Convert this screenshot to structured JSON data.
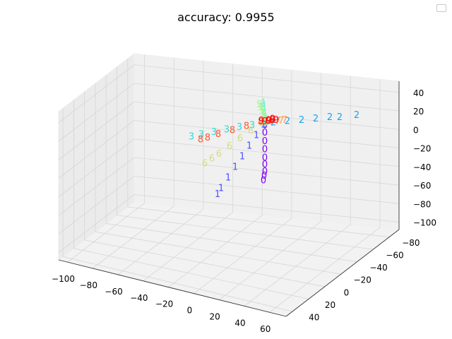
{
  "chart_data": {
    "type": "scatter",
    "projection": "3d",
    "title": "accuracy: 0.9955",
    "xlabel": "",
    "ylabel": "",
    "zlabel": "",
    "grid": true,
    "legend": "top-right",
    "x_ticks": [
      "−100",
      "−80",
      "−60",
      "−40",
      "−20",
      "0",
      "20",
      "40",
      "60"
    ],
    "y_ticks": [
      "−80",
      "−60",
      "−40",
      "−20",
      "0",
      "20",
      "40"
    ],
    "z_ticks": [
      "−100",
      "−80",
      "−60",
      "−40",
      "−20",
      "0",
      "20",
      "40"
    ],
    "xlim": [
      -100,
      70
    ],
    "ylim": [
      -90,
      50
    ],
    "zlim": [
      -115,
      50
    ],
    "series": [
      {
        "label": "0",
        "color": "#8000ff",
        "points": [
          [
            0,
            0,
            -5
          ],
          [
            2,
            -4,
            -18
          ],
          [
            4,
            -8,
            -32
          ],
          [
            6,
            -12,
            -46
          ],
          [
            8,
            -16,
            -60
          ],
          [
            10,
            -20,
            -72
          ],
          [
            12,
            -24,
            -84
          ],
          [
            13,
            -27,
            -92
          ],
          [
            14,
            -30,
            -100
          ]
        ]
      },
      {
        "label": "1",
        "color": "#4a52ff",
        "points": [
          [
            -1,
            0,
            -4
          ],
          [
            -5,
            -2,
            -18
          ],
          [
            -9,
            -4,
            -32
          ],
          [
            -13,
            -6,
            -46
          ],
          [
            -17,
            -8,
            -60
          ],
          [
            -21,
            -10,
            -74
          ],
          [
            -25,
            -12,
            -88
          ],
          [
            -27,
            -13,
            -96
          ]
        ]
      },
      {
        "label": "2",
        "color": "#16a4f0",
        "points": [
          [
            2,
            8,
            2
          ],
          [
            8,
            16,
            6
          ],
          [
            14,
            24,
            10
          ],
          [
            20,
            32,
            14
          ],
          [
            26,
            40,
            18
          ],
          [
            30,
            46,
            20
          ],
          [
            38,
            54,
            24
          ]
        ]
      },
      {
        "label": "3",
        "color": "#2adddd",
        "points": [
          [
            -2,
            4,
            0
          ],
          [
            -12,
            6,
            2
          ],
          [
            -22,
            8,
            4
          ],
          [
            -32,
            10,
            5
          ],
          [
            -42,
            12,
            6
          ],
          [
            -52,
            14,
            7
          ],
          [
            -60,
            16,
            8
          ]
        ]
      },
      {
        "label": "4",
        "color": "#72f6c4",
        "points": [
          [
            -1,
            3,
            2
          ],
          [
            -3,
            6,
            10
          ],
          [
            -5,
            9,
            18
          ],
          [
            -7,
            12,
            26
          ],
          [
            -8,
            14,
            32
          ],
          [
            -9,
            15,
            36
          ]
        ]
      },
      {
        "label": "5",
        "color": "#a4f894",
        "points": [
          [
            -1,
            4,
            2
          ],
          [
            -4,
            8,
            10
          ],
          [
            -7,
            12,
            18
          ],
          [
            -10,
            16,
            26
          ],
          [
            -12,
            18,
            32
          ],
          [
            -14,
            20,
            38
          ]
        ]
      },
      {
        "label": "6",
        "color": "#d4dc7e",
        "points": [
          [
            -2,
            -1,
            -2
          ],
          [
            -8,
            -4,
            -12
          ],
          [
            -14,
            -7,
            -22
          ],
          [
            -20,
            -10,
            -32
          ],
          [
            -26,
            -13,
            -42
          ],
          [
            -30,
            -15,
            -48
          ],
          [
            -34,
            -17,
            -54
          ]
        ]
      },
      {
        "label": "7",
        "color": "#ffa256",
        "points": [
          [
            2,
            -2,
            -2
          ],
          [
            8,
            -6,
            -6
          ],
          [
            14,
            -10,
            -10
          ],
          [
            18,
            -13,
            -12
          ],
          [
            22,
            -16,
            -14
          ]
        ]
      },
      {
        "label": "8",
        "color": "#ff5830",
        "points": [
          [
            -2,
            -2,
            -1
          ],
          [
            -10,
            -6,
            -6
          ],
          [
            -18,
            -10,
            -11
          ],
          [
            -26,
            -14,
            -16
          ],
          [
            -32,
            -17,
            -20
          ],
          [
            -36,
            -19,
            -22
          ]
        ]
      },
      {
        "label": "9",
        "color": "#ff0000",
        "points": [
          [
            0,
            0,
            0
          ],
          [
            2,
            2,
            1
          ],
          [
            4,
            3,
            2
          ],
          [
            6,
            4,
            2
          ],
          [
            -2,
            -1,
            1
          ],
          [
            3,
            -1,
            0
          ],
          [
            5,
            1,
            2
          ]
        ]
      }
    ]
  }
}
